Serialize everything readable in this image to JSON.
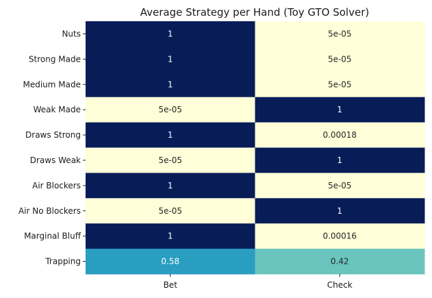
{
  "chart_data": {
    "type": "heatmap",
    "title": "Average Strategy per Hand (Toy GTO Solver)",
    "xlabel": "",
    "ylabel": "",
    "rows": [
      "Nuts",
      "Strong Made",
      "Medium Made",
      "Weak Made",
      "Draws Strong",
      "Draws Weak",
      "Air Blockers",
      "Air No Blockers",
      "Marginal Bluff",
      "Trapping"
    ],
    "columns": [
      "Bet",
      "Check"
    ],
    "values": [
      [
        1,
        5e-05
      ],
      [
        1,
        5e-05
      ],
      [
        1,
        5e-05
      ],
      [
        5e-05,
        1
      ],
      [
        1,
        0.00018
      ],
      [
        5e-05,
        1
      ],
      [
        1,
        5e-05
      ],
      [
        5e-05,
        1
      ],
      [
        1,
        0.00016
      ],
      [
        0.58,
        0.42
      ]
    ],
    "annotations": [
      [
        "1",
        "5e-05"
      ],
      [
        "1",
        "5e-05"
      ],
      [
        "1",
        "5e-05"
      ],
      [
        "5e-05",
        "1"
      ],
      [
        "1",
        "0.00018"
      ],
      [
        "5e-05",
        "1"
      ],
      [
        "1",
        "5e-05"
      ],
      [
        "5e-05",
        "1"
      ],
      [
        "1",
        "0.00016"
      ],
      [
        "0.58",
        "0.42"
      ]
    ],
    "colormap": "YlGnBu",
    "colorbar": false,
    "vmin": 0,
    "vmax": 1,
    "grid": false
  }
}
